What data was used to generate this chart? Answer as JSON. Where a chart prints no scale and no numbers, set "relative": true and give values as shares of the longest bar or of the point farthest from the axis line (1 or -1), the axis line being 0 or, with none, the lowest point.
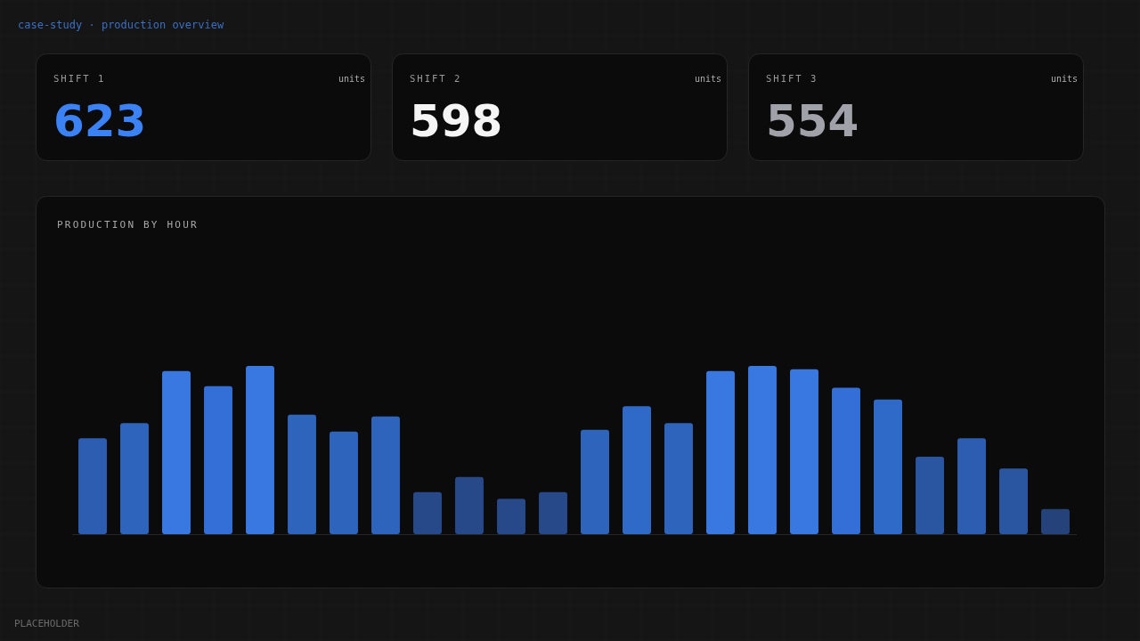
{
  "chart_data": [
    {
      "type": "other",
      "title": "SHIFT 1",
      "values": [
        623
      ],
      "data_labels": true,
      "annotations": [
        "units"
      ]
    },
    {
      "type": "other",
      "title": "SHIFT 2",
      "values": [
        598
      ],
      "data_labels": true,
      "annotations": [
        "units"
      ]
    },
    {
      "type": "other",
      "title": "SHIFT 3",
      "values": [
        554
      ],
      "data_labels": true,
      "annotations": [
        "units"
      ]
    },
    {
      "type": "bar",
      "title": "PRODUCTION BY HOUR",
      "relative": true,
      "categories": [
        null,
        null,
        null,
        null,
        null,
        null,
        null,
        null,
        null,
        null,
        null,
        null,
        null,
        null,
        null,
        null,
        null,
        null,
        null,
        null,
        null,
        null,
        null,
        null
      ],
      "values": [
        0.57,
        0.66,
        0.97,
        0.88,
        1,
        0.71,
        0.61,
        0.7,
        0.25,
        0.34,
        0.21,
        0.25,
        0.62,
        0.76,
        0.66,
        0.97,
        1,
        0.98,
        0.87,
        0.8,
        0.46,
        0.57,
        0.39,
        0.15
      ],
      "colors": [
        "#2c5db0",
        "#2e64bc",
        "#3878e0",
        "#336fd6",
        "#3878e0",
        "#2e64bc",
        "#2e64bc",
        "#2e64bc",
        "#27498a",
        "#27498a",
        "#27498a",
        "#27498a",
        "#2e64bc",
        "#306ac9",
        "#2e64bc",
        "#3878e0",
        "#3878e0",
        "#3878e0",
        "#336fd6",
        "#306ac9",
        "#2a55a0",
        "#2c5db0",
        "#2a55a0",
        "#25427a"
      ],
      "annotations": [
        "case-study · production overview",
        "PLACEHOLDER"
      ]
    }
  ]
}
